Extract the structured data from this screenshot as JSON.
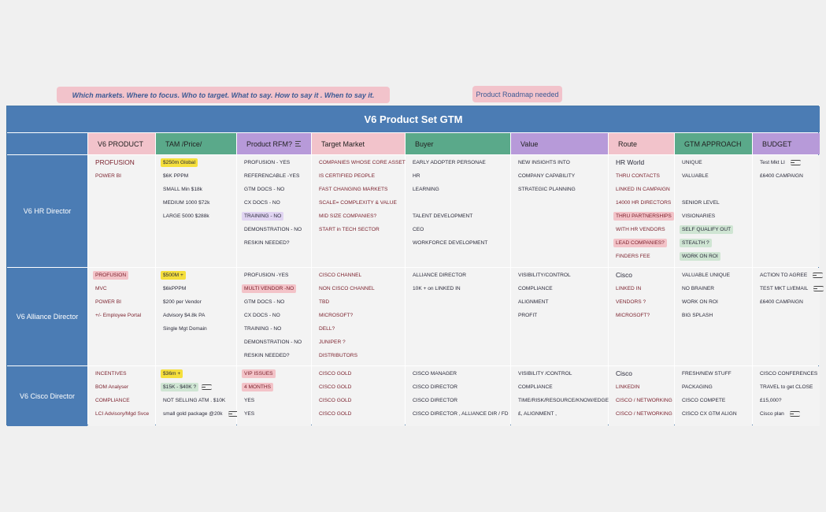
{
  "notes": {
    "left": "Which markets. Where to focus. Who to target. What to say.  How to say it . When to say it.",
    "right": "Product Roadmap needed"
  },
  "board": {
    "title": "V6 Product Set GTM",
    "headers": [
      "V6 PRODUCT",
      "TAM /Price/",
      "Product RFM?",
      "Target Market",
      "Buyer",
      "Value",
      "Route",
      "GTM APPROACH",
      "BUDGET"
    ],
    "header_colors": {
      "pink": "#f2c3cb",
      "green": "#5aa98a",
      "purple": "#b79ad9"
    },
    "rows": [
      {
        "label": "V6 HR Director",
        "cells": [
          [
            "PROFUSION",
            "POWER BI"
          ],
          [
            "$250m Global",
            "$6K PPPM",
            "SMALL  Min  $18k",
            "MEDIUM 1000 $72k",
            "LARGE 5000 $288k"
          ],
          [
            "PROFUSION - YES",
            "REFERENCABLE -YES",
            "GTM DOCS - NO",
            "CX DOCS - NO",
            "TRAINING - NO",
            "DEMONSTRATION - NO",
            "RESKIN NEEDED?"
          ],
          [
            "COMPANIES WHOSE CORE ASSET",
            "IS CERTIFIED PEOPLE",
            "FAST CHANGING MARKETS",
            "SCALE= COMPLEXITY & VALUE",
            "MID SIZE COMPANIES?",
            "START in TECH SECTOR"
          ],
          [
            "EARLY ADOPTER PERSONAE",
            "HR",
            "LEARNING",
            "",
            "TALENT DEVELOPMENT",
            "CEO",
            "WORKFORCE DEVELOPMENT"
          ],
          [
            "NEW INSIGHTS INTO",
            "COMPANY CAPABILITY",
            "STRATEGIC PLANNING"
          ],
          [
            "HR World",
            "THRU CONTACTS",
            "LINKED IN CAMPAIGN",
            "14000 HR DIRECTORS",
            "THRU PARTNERSHIPS",
            "WITH HR VENDORS",
            "LEAD COMPANIES?",
            "FINDERS FEE"
          ],
          [
            "UNIQUE",
            "VALUABLE",
            "",
            "SENIOR LEVEL",
            "VISIONARIES",
            "SELF QUALIFY OUT",
            "STEALTH ?",
            "WORK ON ROI"
          ],
          [
            "Test Mkt LI",
            "£6400 CAMPAIGN"
          ]
        ]
      },
      {
        "label": "V6 Alliance Director",
        "cells": [
          [
            "PROFUSION",
            "MVC",
            "POWER BI",
            "+/- Employee Portal"
          ],
          [
            "$500M +",
            "$6kPPPM",
            "$200 per Vendor",
            "Advisory $4.8k PA",
            "Single Mgt Domain"
          ],
          [
            "PROFUSION -YES",
            "MULTI VENDOR -NO",
            "GTM DOCS - NO",
            "CX DOCS - NO",
            "TRAINING - NO",
            "DEMONSTRATION - NO",
            "RESKIN NEEDED?"
          ],
          [
            "CISCO CHANNEL",
            "NON CISCO CHANNEL",
            "TBD",
            "MICROSOFT?",
            "DELL?",
            "JUNIPER ?",
            "DISTRIBUTORS"
          ],
          [
            "ALLIANCE DIRECTOR",
            "10K + on LINKED IN"
          ],
          [
            "VISIBILITY/CONTROL",
            "COMPLIANCE",
            "ALIGNMENT",
            "PROFIT"
          ],
          [
            "Cisco",
            "LINKED IN",
            "VENDORS ?",
            "MICROSOFT?"
          ],
          [
            "VALUABLE UNIQUE",
            "NO BRAINER",
            "WORK ON ROI",
            "BIG SPLASH"
          ],
          [
            "ACTION TO AGREE",
            "TEST MKT LI/EMAIL",
            "£6400 CAMPAIGN"
          ]
        ]
      },
      {
        "label": "V6 Cisco Director",
        "cells": [
          [
            "INCENTIVES",
            "BOM Analyser",
            "COMPLIANCE",
            "LCI Advisory/Mgd Svce"
          ],
          [
            "$36m +",
            "$15K - $40K ?",
            "NOT SELLING ATM . $10K",
            "small gold package @20k"
          ],
          [
            "VIP ISSUES",
            "4 MONTHS",
            "YES",
            "YES"
          ],
          [
            "CISCO GOLD",
            "CISCO GOLD",
            "CISCO GOLD",
            "CISCO GOLD"
          ],
          [
            "CISCO MANAGER",
            "CISCO DIRECTOR",
            "CISCO DIRECTOR",
            "CISCO DIRECTOR , ALLIANCE DIR  / FD"
          ],
          [
            "VISIBILITY /CONTROL",
            "COMPLIANCE",
            "TIME/RISK/RESOURCE/KNOW/EDGE",
            "£, ALIGNMENT ,"
          ],
          [
            "Cisco",
            "LINKEDIN",
            "CISCO / NETWORKING",
            "CISCO / NETWORKING"
          ],
          [
            "FRESH/NEW STUFF",
            "PACKAGING",
            "CISCO COMPETE",
            "CISCO CX GTM ALIGN"
          ],
          [
            "CISCO CONFERENCES",
            "TRAVEL to get CLOSE",
            "£15,000?",
            "Cisco plan"
          ]
        ]
      }
    ]
  }
}
